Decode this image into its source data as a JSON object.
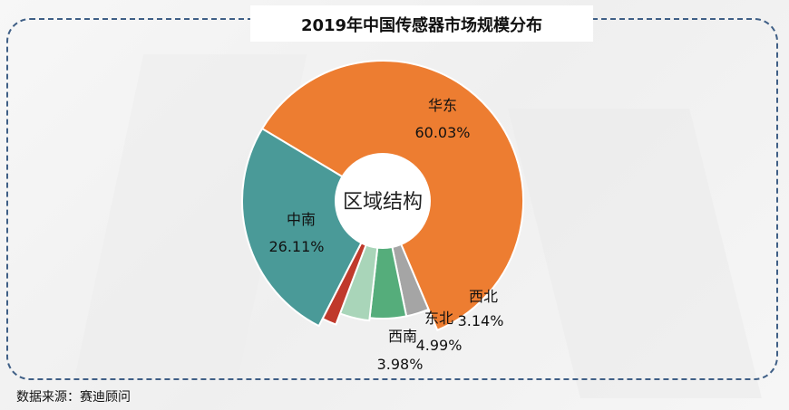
{
  "chart_data": {
    "type": "pie",
    "title": "2019年中国传感器市场规模分布",
    "center_label": "区域结构",
    "slices": [
      {
        "label": "华东",
        "value": 60.03,
        "value_label": "60.03%",
        "color": "#ed7d31"
      },
      {
        "label": "西北",
        "value": 3.14,
        "value_label": "3.14%",
        "color": "#a5a5a5"
      },
      {
        "label": "东北",
        "value": 4.99,
        "value_label": "4.99%",
        "color": "#55ad7b"
      },
      {
        "label": "西南",
        "value": 3.98,
        "value_label": "3.98%",
        "color": "#a9d5b9"
      },
      {
        "label": "",
        "value": 1.75,
        "value_label": "",
        "color": "#c0392b"
      },
      {
        "label": "中南",
        "value": 26.11,
        "value_label": "26.11%",
        "color": "#4a9a98"
      }
    ]
  },
  "footer": {
    "source": "数据来源：赛迪顾问"
  }
}
